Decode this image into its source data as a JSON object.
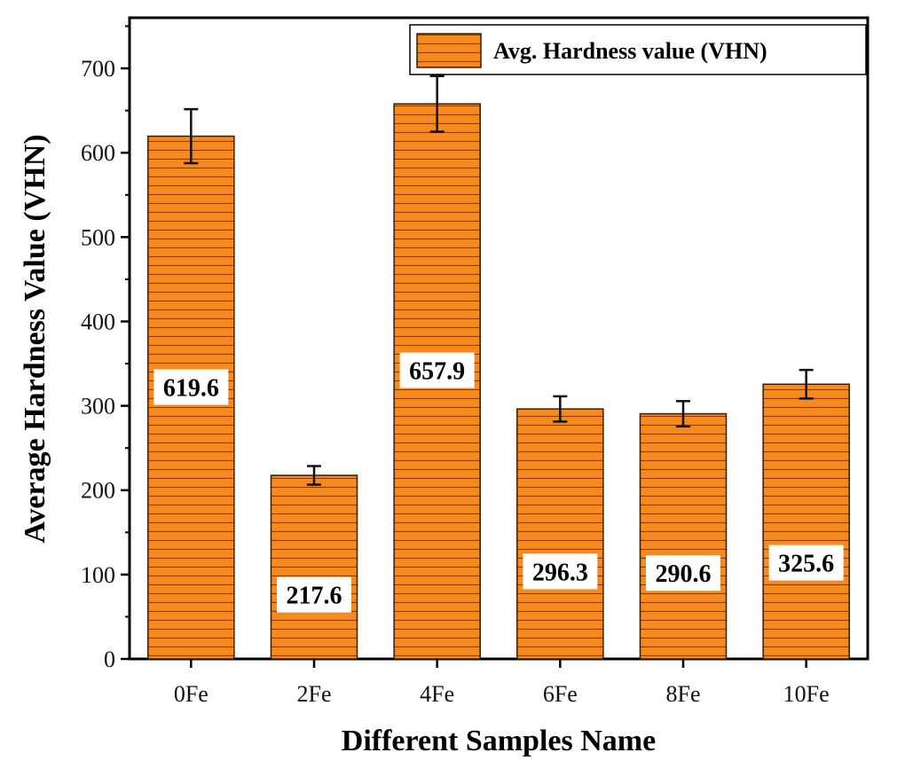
{
  "chart_data": {
    "type": "bar",
    "categories": [
      "0Fe",
      "2Fe",
      "4Fe",
      "6Fe",
      "8Fe",
      "10Fe"
    ],
    "series": [
      {
        "name": "Avg. Hardness value (VHN)",
        "values": [
          619.6,
          217.6,
          657.9,
          296.3,
          290.6,
          325.6
        ],
        "errors": [
          32,
          11,
          33,
          15,
          15,
          17
        ],
        "data_labels": [
          "619.6",
          "217.6",
          "657.9",
          "296.3",
          "290.6",
          "325.6"
        ]
      }
    ],
    "title": "",
    "xlabel": "Different Samples Name",
    "ylabel": "Average Hardness Value (VHN)",
    "ylim": [
      0,
      760
    ],
    "yticks": [
      0,
      100,
      200,
      300,
      400,
      500,
      600,
      700
    ],
    "ytick_labels": [
      "0",
      "100",
      "200",
      "300",
      "400",
      "500",
      "600",
      "700"
    ],
    "legend_position": "top-right",
    "grid": false,
    "bar_fill": "hatched-horizontal",
    "colors": {
      "bar": "#F58A1F",
      "hatch": "#8A3A00",
      "edge": "#3A1A00",
      "axis": "#000000"
    }
  }
}
